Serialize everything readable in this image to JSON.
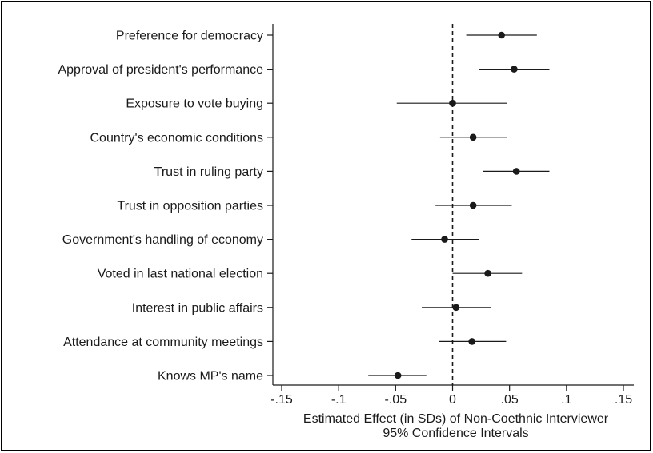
{
  "chart_data": {
    "type": "scatter",
    "subtype": "coefficient-plot",
    "categories": [
      "Preference for democracy",
      "Approval of president's performance",
      "Exposure to vote buying",
      "Country's economic conditions",
      "Trust in ruling party",
      "Trust in opposition parties",
      "Government's handling of economy",
      "Voted in last national election",
      "Interest in public affairs",
      "Attendance at community meetings",
      "Knows MP's name"
    ],
    "estimates": [
      0.043,
      0.054,
      0.0,
      0.018,
      0.056,
      0.018,
      -0.007,
      0.031,
      0.003,
      0.017,
      -0.048
    ],
    "ci_low": [
      0.012,
      0.023,
      -0.049,
      -0.011,
      0.027,
      -0.015,
      -0.036,
      0.0,
      -0.027,
      -0.012,
      -0.074
    ],
    "ci_high": [
      0.074,
      0.085,
      0.048,
      0.048,
      0.085,
      0.052,
      0.023,
      0.061,
      0.034,
      0.047,
      -0.023
    ],
    "xlim": [
      -0.15,
      0.15
    ],
    "xticks": [
      -0.15,
      -0.1,
      -0.05,
      0,
      0.05,
      0.1,
      0.15
    ],
    "xtick_labels": [
      "-.15",
      "-.1",
      "-.05",
      "0",
      ".05",
      ".1",
      ".15"
    ],
    "reference_line": 0,
    "xlabel_line1": "Estimated Effect (in SDs) of Non-Coethnic Interviewer",
    "xlabel_line2": "95% Confidence Intervals",
    "grid": false,
    "point_color": "#1a1a1a",
    "line_color": "#1a1a1a"
  }
}
